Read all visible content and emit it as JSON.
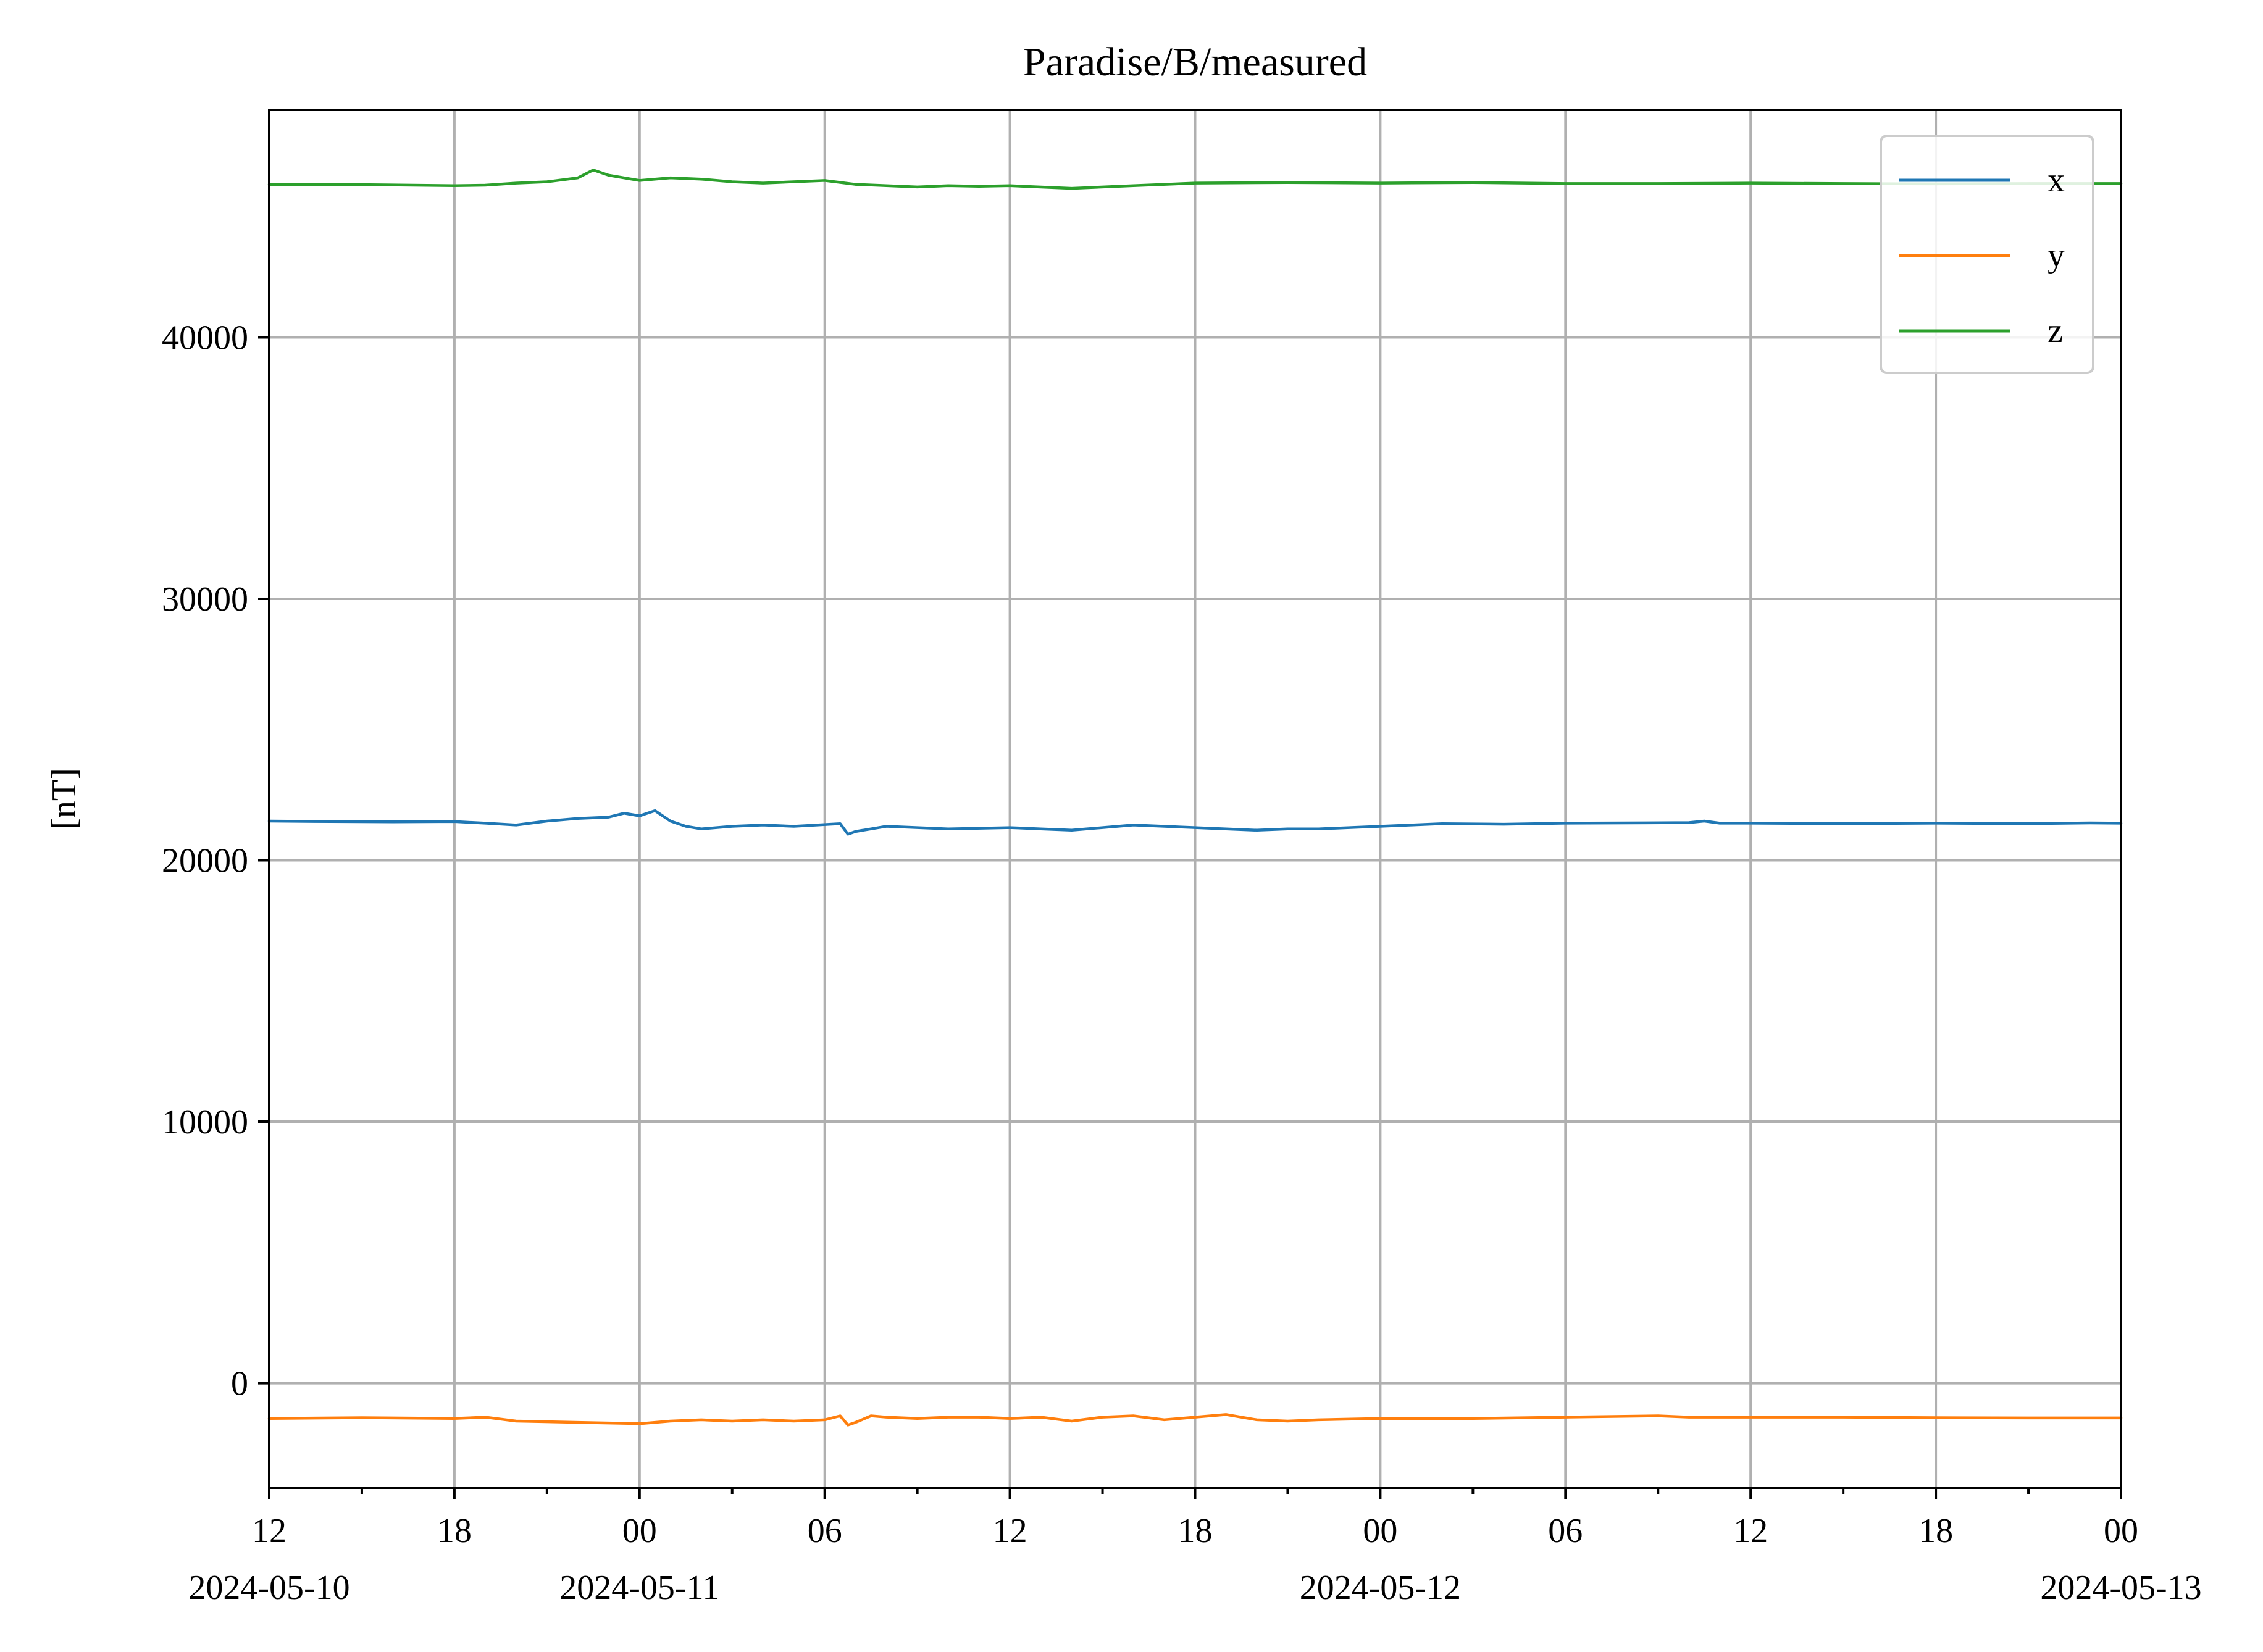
{
  "chart_data": {
    "type": "line",
    "title": "Paradise/B/measured",
    "ylabel": "[nT]",
    "xlabel": "",
    "xlim": [
      "2024-05-10T12:00",
      "2024-05-13T00:00"
    ],
    "ylim": [
      -4000,
      48700
    ],
    "grid": true,
    "legend_position": "top-right",
    "y_ticks": [
      {
        "value": 0,
        "label": "0"
      },
      {
        "value": 10000,
        "label": "10000"
      },
      {
        "value": 20000,
        "label": "20000"
      },
      {
        "value": 30000,
        "label": "30000"
      },
      {
        "value": 40000,
        "label": "40000"
      }
    ],
    "x_major_ticks": [
      {
        "t": "2024-05-10T12:00",
        "label": "12",
        "date": "2024-05-10"
      },
      {
        "t": "2024-05-10T18:00",
        "label": "18",
        "date": ""
      },
      {
        "t": "2024-05-11T00:00",
        "label": "00",
        "date": "2024-05-11"
      },
      {
        "t": "2024-05-11T06:00",
        "label": "06",
        "date": ""
      },
      {
        "t": "2024-05-11T12:00",
        "label": "12",
        "date": ""
      },
      {
        "t": "2024-05-11T18:00",
        "label": "18",
        "date": ""
      },
      {
        "t": "2024-05-12T00:00",
        "label": "00",
        "date": "2024-05-12"
      },
      {
        "t": "2024-05-12T06:00",
        "label": "06",
        "date": ""
      },
      {
        "t": "2024-05-12T12:00",
        "label": "12",
        "date": ""
      },
      {
        "t": "2024-05-12T18:00",
        "label": "18",
        "date": ""
      },
      {
        "t": "2024-05-13T00:00",
        "label": "00",
        "date": "2024-05-13"
      }
    ],
    "x_minor_ticks": [
      "2024-05-10T15:00",
      "2024-05-10T21:00",
      "2024-05-11T03:00",
      "2024-05-11T09:00",
      "2024-05-11T15:00",
      "2024-05-11T21:00",
      "2024-05-12T03:00",
      "2024-05-12T09:00",
      "2024-05-12T15:00",
      "2024-05-12T21:00"
    ],
    "series": [
      {
        "name": "x",
        "color": "#1f77b4",
        "points": [
          [
            "2024-05-10T12:00",
            21500
          ],
          [
            "2024-05-10T14:00",
            21480
          ],
          [
            "2024-05-10T16:00",
            21470
          ],
          [
            "2024-05-10T18:00",
            21480
          ],
          [
            "2024-05-10T19:00",
            21420
          ],
          [
            "2024-05-10T20:00",
            21350
          ],
          [
            "2024-05-10T21:00",
            21500
          ],
          [
            "2024-05-10T22:00",
            21600
          ],
          [
            "2024-05-10T23:00",
            21650
          ],
          [
            "2024-05-10T23:30",
            21800
          ],
          [
            "2024-05-11T00:00",
            21700
          ],
          [
            "2024-05-11T00:30",
            21900
          ],
          [
            "2024-05-11T01:00",
            21500
          ],
          [
            "2024-05-11T01:30",
            21300
          ],
          [
            "2024-05-11T02:00",
            21200
          ],
          [
            "2024-05-11T03:00",
            21300
          ],
          [
            "2024-05-11T04:00",
            21350
          ],
          [
            "2024-05-11T05:00",
            21300
          ],
          [
            "2024-05-11T06:30",
            21400
          ],
          [
            "2024-05-11T06:45",
            21000
          ],
          [
            "2024-05-11T07:00",
            21100
          ],
          [
            "2024-05-11T08:00",
            21300
          ],
          [
            "2024-05-11T09:00",
            21250
          ],
          [
            "2024-05-11T10:00",
            21200
          ],
          [
            "2024-05-11T12:00",
            21250
          ],
          [
            "2024-05-11T13:00",
            21200
          ],
          [
            "2024-05-11T14:00",
            21150
          ],
          [
            "2024-05-11T15:00",
            21250
          ],
          [
            "2024-05-11T16:00",
            21350
          ],
          [
            "2024-05-11T17:00",
            21300
          ],
          [
            "2024-05-11T18:00",
            21250
          ],
          [
            "2024-05-11T19:00",
            21200
          ],
          [
            "2024-05-11T20:00",
            21150
          ],
          [
            "2024-05-11T21:00",
            21200
          ],
          [
            "2024-05-11T22:00",
            21200
          ],
          [
            "2024-05-12T00:00",
            21300
          ],
          [
            "2024-05-12T01:00",
            21350
          ],
          [
            "2024-05-12T02:00",
            21400
          ],
          [
            "2024-05-12T04:00",
            21380
          ],
          [
            "2024-05-12T06:00",
            21420
          ],
          [
            "2024-05-12T08:00",
            21430
          ],
          [
            "2024-05-12T10:00",
            21440
          ],
          [
            "2024-05-12T10:30",
            21500
          ],
          [
            "2024-05-12T11:00",
            21420
          ],
          [
            "2024-05-12T12:00",
            21420
          ],
          [
            "2024-05-12T15:00",
            21400
          ],
          [
            "2024-05-12T18:00",
            21420
          ],
          [
            "2024-05-12T21:00",
            21400
          ],
          [
            "2024-05-12T23:00",
            21430
          ],
          [
            "2024-05-13T00:00",
            21420
          ]
        ]
      },
      {
        "name": "y",
        "color": "#ff7f0e",
        "points": [
          [
            "2024-05-10T12:00",
            -1350
          ],
          [
            "2024-05-10T15:00",
            -1320
          ],
          [
            "2024-05-10T18:00",
            -1350
          ],
          [
            "2024-05-10T19:00",
            -1300
          ],
          [
            "2024-05-10T20:00",
            -1450
          ],
          [
            "2024-05-10T22:00",
            -1500
          ],
          [
            "2024-05-11T00:00",
            -1550
          ],
          [
            "2024-05-11T01:00",
            -1450
          ],
          [
            "2024-05-11T02:00",
            -1400
          ],
          [
            "2024-05-11T03:00",
            -1450
          ],
          [
            "2024-05-11T04:00",
            -1400
          ],
          [
            "2024-05-11T05:00",
            -1450
          ],
          [
            "2024-05-11T06:00",
            -1400
          ],
          [
            "2024-05-11T06:30",
            -1250
          ],
          [
            "2024-05-11T06:45",
            -1600
          ],
          [
            "2024-05-11T07:00",
            -1500
          ],
          [
            "2024-05-11T07:30",
            -1250
          ],
          [
            "2024-05-11T08:00",
            -1300
          ],
          [
            "2024-05-11T09:00",
            -1350
          ],
          [
            "2024-05-11T10:00",
            -1300
          ],
          [
            "2024-05-11T11:00",
            -1300
          ],
          [
            "2024-05-11T12:00",
            -1350
          ],
          [
            "2024-05-11T13:00",
            -1300
          ],
          [
            "2024-05-11T14:00",
            -1450
          ],
          [
            "2024-05-11T15:00",
            -1300
          ],
          [
            "2024-05-11T16:00",
            -1250
          ],
          [
            "2024-05-11T17:00",
            -1400
          ],
          [
            "2024-05-11T18:00",
            -1300
          ],
          [
            "2024-05-11T19:00",
            -1200
          ],
          [
            "2024-05-11T20:00",
            -1400
          ],
          [
            "2024-05-11T21:00",
            -1450
          ],
          [
            "2024-05-11T22:00",
            -1400
          ],
          [
            "2024-05-12T00:00",
            -1350
          ],
          [
            "2024-05-12T03:00",
            -1350
          ],
          [
            "2024-05-12T06:00",
            -1300
          ],
          [
            "2024-05-12T09:00",
            -1250
          ],
          [
            "2024-05-12T10:00",
            -1300
          ],
          [
            "2024-05-12T12:00",
            -1300
          ],
          [
            "2024-05-12T15:00",
            -1300
          ],
          [
            "2024-05-12T18:00",
            -1320
          ],
          [
            "2024-05-12T21:00",
            -1330
          ],
          [
            "2024-05-13T00:00",
            -1330
          ]
        ]
      },
      {
        "name": "z",
        "color": "#2ca02c",
        "points": [
          [
            "2024-05-10T12:00",
            45850
          ],
          [
            "2024-05-10T15:00",
            45840
          ],
          [
            "2024-05-10T18:00",
            45800
          ],
          [
            "2024-05-10T19:00",
            45820
          ],
          [
            "2024-05-10T20:00",
            45900
          ],
          [
            "2024-05-10T21:00",
            45950
          ],
          [
            "2024-05-10T22:00",
            46100
          ],
          [
            "2024-05-10T22:30",
            46400
          ],
          [
            "2024-05-10T23:00",
            46200
          ],
          [
            "2024-05-11T00:00",
            46000
          ],
          [
            "2024-05-11T01:00",
            46100
          ],
          [
            "2024-05-11T02:00",
            46050
          ],
          [
            "2024-05-11T03:00",
            45950
          ],
          [
            "2024-05-11T04:00",
            45900
          ],
          [
            "2024-05-11T06:00",
            46000
          ],
          [
            "2024-05-11T07:00",
            45850
          ],
          [
            "2024-05-11T08:00",
            45800
          ],
          [
            "2024-05-11T09:00",
            45750
          ],
          [
            "2024-05-11T10:00",
            45800
          ],
          [
            "2024-05-11T11:00",
            45780
          ],
          [
            "2024-05-11T12:00",
            45800
          ],
          [
            "2024-05-11T14:00",
            45700
          ],
          [
            "2024-05-11T16:00",
            45800
          ],
          [
            "2024-05-11T18:00",
            45900
          ],
          [
            "2024-05-11T21:00",
            45920
          ],
          [
            "2024-05-12T00:00",
            45900
          ],
          [
            "2024-05-12T03:00",
            45920
          ],
          [
            "2024-05-12T06:00",
            45880
          ],
          [
            "2024-05-12T09:00",
            45880
          ],
          [
            "2024-05-12T12:00",
            45900
          ],
          [
            "2024-05-12T15:00",
            45880
          ],
          [
            "2024-05-12T18:00",
            45870
          ],
          [
            "2024-05-12T21:00",
            45880
          ],
          [
            "2024-05-13T00:00",
            45880
          ]
        ]
      }
    ]
  }
}
